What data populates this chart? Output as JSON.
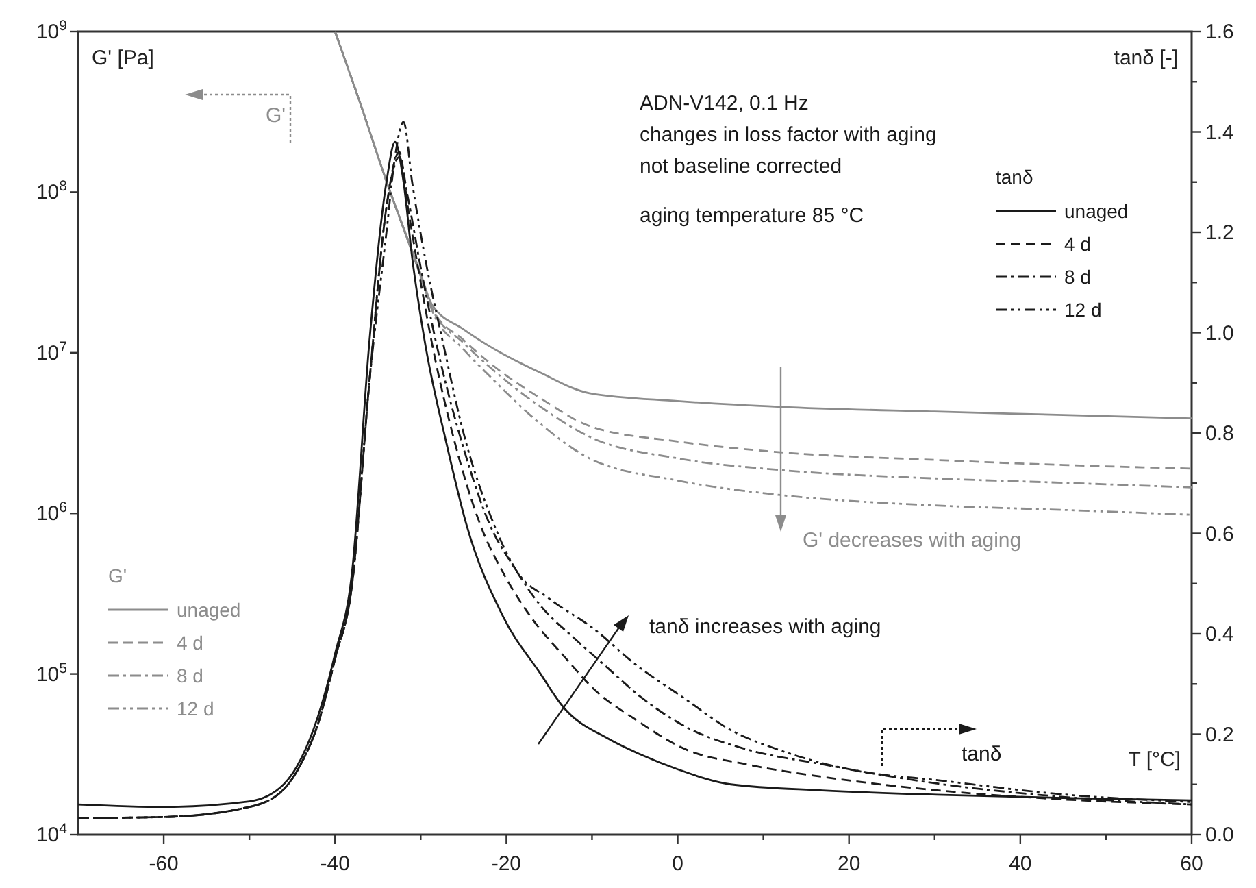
{
  "chart_data": {
    "type": "line",
    "xlabel": "T [°C]",
    "ylabel": "G' [Pa]",
    "y2label": "tanδ [-]",
    "legend_title": [
      "G'",
      "tanδ"
    ],
    "xlim": [
      -70,
      60
    ],
    "xticks": [
      -60,
      {
        "value": -50,
        "label": null
      },
      -40,
      {
        "value": -30,
        "label": null
      },
      -20,
      {
        "value": -10,
        "label": null
      },
      0,
      {
        "value": 10,
        "label": null
      },
      20,
      {
        "value": 30,
        "label": null
      },
      40,
      {
        "value": 50,
        "label": null
      },
      60
    ],
    "ylim": [
      10000,
      1000000000
    ],
    "yticks": [
      {
        "value": 10000,
        "label": "10$^{4}$"
      },
      {
        "value": 100000,
        "label": "10$^{5}$"
      },
      {
        "value": 1000000,
        "label": "10$^{6}$"
      },
      {
        "value": 10000000,
        "label": "10$^{7}$"
      },
      {
        "value": 100000000,
        "label": "10$^{8}$"
      },
      {
        "value": 1000000000,
        "label": "10$^{9}$"
      }
    ],
    "y2lim": [
      0,
      1.6
    ],
    "y2ticks": [
      {
        "value": 0,
        "label": "0.0"
      },
      {
        "value": 0.1,
        "label": null
      },
      0.2,
      {
        "value": 0.3,
        "label": null
      },
      0.4,
      {
        "value": 0.5,
        "label": null
      },
      0.6,
      {
        "value": 0.7,
        "label": null
      },
      0.8,
      {
        "value": 0.9,
        "label": null
      },
      {
        "value": 1,
        "label": "1.0"
      },
      {
        "value": 1.1,
        "label": null
      },
      1.2,
      {
        "value": 1.3,
        "label": null
      },
      1.4,
      {
        "value": 1.5,
        "label": null
      },
      1.6
    ],
    "log": "y",
    "grid": false,
    "legend": [
      "left",
      "top right"
    ],
    "annotations": [
      "ADN-V142, 0.1 Hz",
      "changes in loss factor with aging",
      "not baseline corrected",
      "aging temperature 85 °C",
      "G' decreases with aging",
      "tanδ increases with aging",
      "G'",
      "tanδ"
    ],
    "series": [
      {
        "name": "unaged",
        "color": "#8c8c8c",
        "line_style": "solid",
        "x": [
          -40,
          -37,
          -34.3,
          -30,
          -28.7,
          -25,
          -22,
          -16,
          -10.3,
          0,
          12,
          30,
          45,
          60
        ],
        "values": [
          1000000000,
          350000000,
          130000000,
          31000000,
          20000000,
          14000000,
          11000000,
          7500000,
          5600000,
          5000000,
          4600000,
          4300000,
          4100000,
          3900000
        ]
      },
      {
        "name": "4 d",
        "color": "#8c8c8c",
        "line_style": "dashed",
        "x": [
          -40,
          -37,
          -34.3,
          -30,
          -28.7,
          -25,
          -22,
          -16,
          -10.3,
          0,
          12,
          30,
          45,
          60
        ],
        "values": [
          1000000000,
          350000000,
          130000000,
          30000000,
          19000000,
          12000000,
          8700000,
          5200000,
          3500000,
          2800000,
          2400000,
          2150000,
          2000000,
          1900000
        ]
      },
      {
        "name": "8 d",
        "color": "#8c8c8c",
        "line_style": "dashdot",
        "x": [
          -40,
          -37,
          -34.3,
          -30,
          -28.7,
          -25,
          -22,
          -16,
          -10.3,
          0,
          12,
          30,
          45,
          60
        ],
        "values": [
          1000000000,
          350000000,
          130000000,
          30000000,
          19000000,
          11500000,
          8200000,
          4600000,
          3000000,
          2200000,
          1860000,
          1650000,
          1550000,
          1450000
        ]
      },
      {
        "name": "12 d",
        "color": "#8c8c8c",
        "line_style": "dashdotdot",
        "x": [
          -40,
          -37,
          -34.3,
          -30,
          -28.7,
          -25,
          -22,
          -16,
          -10.3,
          0,
          12,
          30,
          45,
          60
        ],
        "values": [
          1000000000,
          350000000,
          130000000,
          30000000,
          18500000,
          10500000,
          7200000,
          3600000,
          2200000,
          1600000,
          1300000,
          1120000,
          1050000,
          980000
        ]
      },
      {
        "name": "unaged",
        "color": "#1a1a1a",
        "line_style": "solid",
        "axis": "y2",
        "x": [
          -70,
          -60,
          -50,
          -46,
          -44,
          -42,
          -40,
          -38,
          -36,
          -34,
          -33,
          -32,
          -31,
          -29.5,
          -27,
          -24.7,
          -20.4,
          -16,
          -13.5,
          -8,
          -4.4,
          0,
          6.2,
          16.9,
          31,
          45,
          60
        ],
        "values": [
          0.06,
          0.055,
          0.066,
          0.1,
          0.15,
          0.235,
          0.36,
          0.525,
          0.98,
          1.3,
          1.38,
          1.3,
          1.15,
          0.98,
          0.78,
          0.62,
          0.435,
          0.32,
          0.257,
          0.19,
          0.16,
          0.13,
          0.1,
          0.088,
          0.079,
          0.073,
          0.068
        ]
      },
      {
        "name": "4 d",
        "color": "#1a1a1a",
        "line_style": "dashed",
        "axis": "y2",
        "x": [
          -70,
          -60,
          -50,
          -46,
          -44,
          -42,
          -40,
          -38,
          -36,
          -34,
          -32.5,
          -31.5,
          -30,
          -28.7,
          -26,
          -23.1,
          -20,
          -17.2,
          -13,
          -9.8,
          -5,
          0.9,
          8,
          16.9,
          31,
          45,
          60
        ],
        "values": [
          0.033,
          0.035,
          0.055,
          0.09,
          0.14,
          0.22,
          0.35,
          0.5,
          0.9,
          1.25,
          1.36,
          1.25,
          1.1,
          0.98,
          0.78,
          0.62,
          0.51,
          0.435,
          0.35,
          0.29,
          0.23,
          0.17,
          0.14,
          0.115,
          0.087,
          0.07,
          0.06
        ]
      },
      {
        "name": "8 d",
        "color": "#1a1a1a",
        "line_style": "dashdot",
        "axis": "y2",
        "x": [
          -70,
          -60,
          -50,
          -46,
          -44,
          -42,
          -40,
          -38,
          -36,
          -34,
          -32.5,
          -31.5,
          -30,
          -28.2,
          -25,
          -22,
          -19,
          -16.2,
          -12,
          -8.7,
          -4,
          0.9,
          8,
          16.9,
          31,
          45,
          60
        ],
        "values": [
          0.033,
          0.035,
          0.055,
          0.09,
          0.14,
          0.22,
          0.35,
          0.5,
          0.9,
          1.25,
          1.35,
          1.27,
          1.13,
          0.98,
          0.77,
          0.62,
          0.53,
          0.46,
          0.39,
          0.34,
          0.27,
          0.215,
          0.17,
          0.14,
          0.1,
          0.075,
          0.06
        ]
      },
      {
        "name": "12 d",
        "color": "#1a1a1a",
        "line_style": "dashdotdot",
        "axis": "y2",
        "x": [
          -70,
          -60,
          -50,
          -46,
          -44,
          -42,
          -40,
          -38,
          -36,
          -34,
          -33,
          -32,
          -31,
          -29.5,
          -27.4,
          -25,
          -21.5,
          -18.8,
          -15,
          -9.8,
          -5,
          0.9,
          6,
          11.6,
          20,
          31,
          45,
          60
        ],
        "values": [
          0.033,
          0.035,
          0.055,
          0.09,
          0.14,
          0.22,
          0.35,
          0.5,
          0.9,
          1.2,
          1.35,
          1.42,
          1.3,
          1.15,
          0.98,
          0.8,
          0.62,
          0.525,
          0.47,
          0.41,
          0.34,
          0.27,
          0.21,
          0.17,
          0.13,
          0.107,
          0.08,
          0.065
        ]
      }
    ]
  }
}
